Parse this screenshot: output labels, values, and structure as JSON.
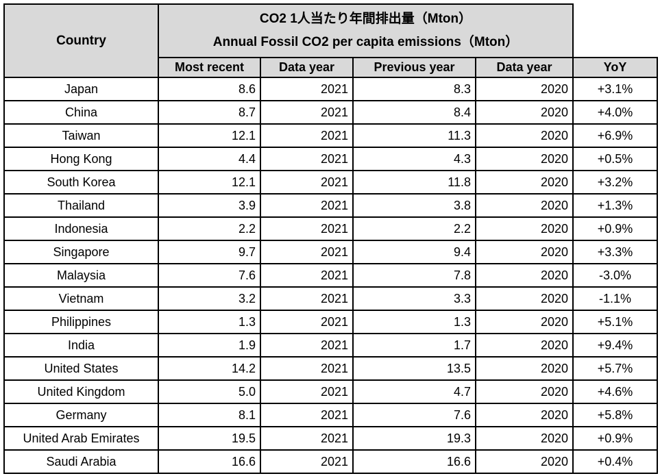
{
  "chart_data": {
    "type": "table",
    "title_ja": "CO2 1人当たり年間排出量（Mton）",
    "title_en": "Annual Fossil CO2 per capita emissions（Mton）",
    "row_header": "Country",
    "columns": [
      "Most recent",
      "Data year",
      "Previous year",
      "Data year",
      "YoY"
    ],
    "rows": [
      {
        "country": "Japan",
        "most_recent": "8.6",
        "data_year_1": "2021",
        "previous_year": "8.3",
        "data_year_2": "2020",
        "yoy": "+3.1%"
      },
      {
        "country": "China",
        "most_recent": "8.7",
        "data_year_1": "2021",
        "previous_year": "8.4",
        "data_year_2": "2020",
        "yoy": "+4.0%"
      },
      {
        "country": "Taiwan",
        "most_recent": "12.1",
        "data_year_1": "2021",
        "previous_year": "11.3",
        "data_year_2": "2020",
        "yoy": "+6.9%"
      },
      {
        "country": "Hong Kong",
        "most_recent": "4.4",
        "data_year_1": "2021",
        "previous_year": "4.3",
        "data_year_2": "2020",
        "yoy": "+0.5%"
      },
      {
        "country": "South Korea",
        "most_recent": "12.1",
        "data_year_1": "2021",
        "previous_year": "11.8",
        "data_year_2": "2020",
        "yoy": "+3.2%"
      },
      {
        "country": "Thailand",
        "most_recent": "3.9",
        "data_year_1": "2021",
        "previous_year": "3.8",
        "data_year_2": "2020",
        "yoy": "+1.3%"
      },
      {
        "country": "Indonesia",
        "most_recent": "2.2",
        "data_year_1": "2021",
        "previous_year": "2.2",
        "data_year_2": "2020",
        "yoy": "+0.9%"
      },
      {
        "country": "Singapore",
        "most_recent": "9.7",
        "data_year_1": "2021",
        "previous_year": "9.4",
        "data_year_2": "2020",
        "yoy": "+3.3%"
      },
      {
        "country": "Malaysia",
        "most_recent": "7.6",
        "data_year_1": "2021",
        "previous_year": "7.8",
        "data_year_2": "2020",
        "yoy": "-3.0%"
      },
      {
        "country": "Vietnam",
        "most_recent": "3.2",
        "data_year_1": "2021",
        "previous_year": "3.3",
        "data_year_2": "2020",
        "yoy": "-1.1%"
      },
      {
        "country": "Philippines",
        "most_recent": "1.3",
        "data_year_1": "2021",
        "previous_year": "1.3",
        "data_year_2": "2020",
        "yoy": "+5.1%"
      },
      {
        "country": "India",
        "most_recent": "1.9",
        "data_year_1": "2021",
        "previous_year": "1.7",
        "data_year_2": "2020",
        "yoy": "+9.4%"
      },
      {
        "country": "United States",
        "most_recent": "14.2",
        "data_year_1": "2021",
        "previous_year": "13.5",
        "data_year_2": "2020",
        "yoy": "+5.7%"
      },
      {
        "country": "United Kingdom",
        "most_recent": "5.0",
        "data_year_1": "2021",
        "previous_year": "4.7",
        "data_year_2": "2020",
        "yoy": "+4.6%"
      },
      {
        "country": "Germany",
        "most_recent": "8.1",
        "data_year_1": "2021",
        "previous_year": "7.6",
        "data_year_2": "2020",
        "yoy": "+5.8%"
      },
      {
        "country": "United Arab Emirates",
        "most_recent": "19.5",
        "data_year_1": "2021",
        "previous_year": "19.3",
        "data_year_2": "2020",
        "yoy": "+0.9%"
      },
      {
        "country": "Saudi Arabia",
        "most_recent": "16.6",
        "data_year_1": "2021",
        "previous_year": "16.6",
        "data_year_2": "2020",
        "yoy": "+0.4%"
      }
    ]
  },
  "colors": {
    "header_bg": "#d9d9d9",
    "cell_bg": "#ffffff",
    "border": "#000000",
    "text": "#000000"
  }
}
